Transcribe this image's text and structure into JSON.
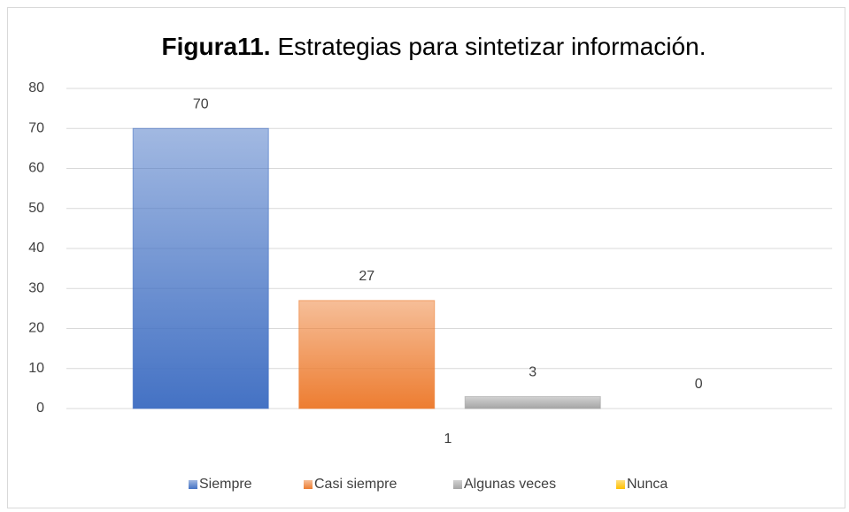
{
  "chart_data": {
    "type": "bar",
    "title_prefix": "Figura11.",
    "title": "Estrategias para sintetizar información.",
    "categories": [
      "1"
    ],
    "series": [
      {
        "name": "Siempre",
        "color": "#4472c4",
        "values": [
          70
        ]
      },
      {
        "name": "Casi siempre",
        "color": "#ed7d31",
        "values": [
          27
        ]
      },
      {
        "name": "Algunas veces",
        "color": "#a5a5a5",
        "values": [
          3
        ]
      },
      {
        "name": "Nunca",
        "color": "#ffc000",
        "values": [
          0
        ]
      }
    ],
    "ylim": [
      0,
      80
    ],
    "yticks": [
      0,
      10,
      20,
      30,
      40,
      50,
      60,
      70,
      80
    ],
    "grid": true,
    "legend": "bottom"
  }
}
